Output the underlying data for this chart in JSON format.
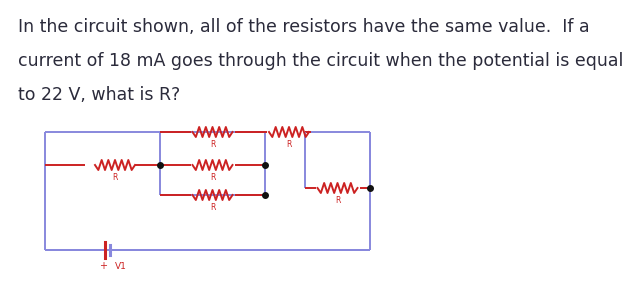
{
  "wire_color": "#8888dd",
  "resistor_color": "#cc2222",
  "dot_color": "#111111",
  "title_lines": [
    "In the circuit shown, all of the resistors have the same value.  If a",
    "current of 18 mA goes through the circuit when the potential is equal",
    "to 22 V, what is R?"
  ],
  "title_fontsize": 12.5,
  "title_color": "#2b2b3b",
  "fig_width": 6.16,
  "fig_height": 2.58,
  "background_color": "#ffffff",
  "resistor_label": "R",
  "battery_label": "V1"
}
